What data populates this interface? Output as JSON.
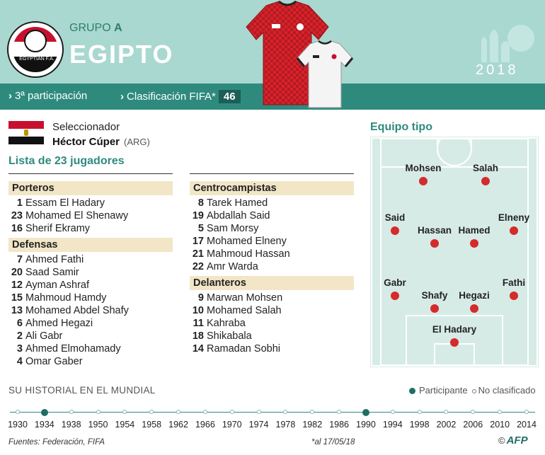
{
  "header": {
    "grupo_label": "GRUPO",
    "grupo_letter": "A",
    "country": "EGIPTO",
    "participacion": "3ª participación",
    "clasificacion_label": "Clasificación FIFA*",
    "clasificacion_rank": "46",
    "year": "2018",
    "crest_text": "EGYPTIAN F.A."
  },
  "coach": {
    "label": "Seleccionador",
    "name": "Héctor Cúper",
    "nationality": "(ARG)"
  },
  "list_title": "Lista de 23 jugadores",
  "columns": {
    "left": [
      {
        "title": "Porteros",
        "players": [
          {
            "num": "1",
            "name": "Essam El Hadary"
          },
          {
            "num": "23",
            "name": "Mohamed El Shenawy"
          },
          {
            "num": "16",
            "name": "Sherif Ekramy"
          }
        ]
      },
      {
        "title": "Defensas",
        "players": [
          {
            "num": "7",
            "name": "Ahmed Fathi"
          },
          {
            "num": "20",
            "name": "Saad Samir"
          },
          {
            "num": "12",
            "name": "Ayman Ashraf"
          },
          {
            "num": "15",
            "name": "Mahmoud Hamdy"
          },
          {
            "num": "13",
            "name": "Mohamed Abdel Shafy"
          },
          {
            "num": "6",
            "name": "Ahmed Hegazi"
          },
          {
            "num": "2",
            "name": "Ali Gabr"
          },
          {
            "num": "3",
            "name": "Ahmed Elmohamady"
          },
          {
            "num": "4",
            "name": "Omar Gaber"
          }
        ]
      }
    ],
    "right": [
      {
        "title": "Centrocampistas",
        "players": [
          {
            "num": "8",
            "name": "Tarek Hamed"
          },
          {
            "num": "19",
            "name": "Abdallah Said"
          },
          {
            "num": "5",
            "name": "Sam Morsy"
          },
          {
            "num": "17",
            "name": "Mohamed  Elneny"
          },
          {
            "num": "21",
            "name": "Mahmoud Hassan"
          },
          {
            "num": "22",
            "name": "Amr Warda"
          }
        ]
      },
      {
        "title": "Delanteros",
        "players": [
          {
            "num": "9",
            "name": "Marwan Mohsen"
          },
          {
            "num": "10",
            "name": "Mohamed Salah"
          },
          {
            "num": "11",
            "name": "Kahraba"
          },
          {
            "num": "18",
            "name": "Shikabala"
          },
          {
            "num": "14",
            "name": "Ramadan Sobhi"
          }
        ]
      }
    ]
  },
  "field": {
    "title": "Equipo tipo",
    "players": [
      "Mohsen",
      "Salah",
      "Said",
      "Elneny",
      "Hassan",
      "Hamed",
      "Gabr",
      "Fathi",
      "Shafy",
      "Hegazi",
      "El Hadary"
    ]
  },
  "history": {
    "title": "SU HISTORIAL EN EL MUNDIAL",
    "legend_participant": "Participante",
    "legend_not": "No clasificado",
    "years": [
      "1930",
      "1934",
      "1938",
      "1950",
      "1954",
      "1958",
      "1962",
      "1966",
      "1970",
      "1974",
      "1978",
      "1982",
      "1986",
      "1990",
      "1994",
      "1998",
      "2002",
      "2006",
      "2010",
      "2014"
    ],
    "participated": [
      "1934",
      "1990"
    ]
  },
  "footer": {
    "source": "Fuentes: Federación, FIFA",
    "note": "*al 17/05/18",
    "copyright": "©",
    "brand": "AFP"
  },
  "colors": {
    "accent": "#2f8a7e",
    "header_bg": "#a9d8d0",
    "section_bg": "#f2e6c7",
    "player_dot": "#d52b2b",
    "field_bg": "#d6ebe6"
  }
}
